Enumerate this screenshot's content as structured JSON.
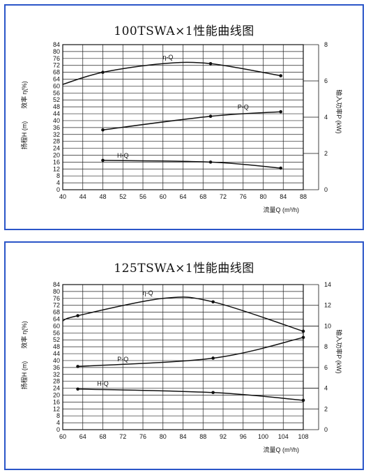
{
  "chart_data": [
    {
      "type": "line",
      "title": "100TSWA×1性能曲线图",
      "xlabel": "流量Q (m³/h)",
      "ylabel_left_1": "扬程H (m)",
      "ylabel_left_2": "效率 η(%)",
      "ylabel_right": "输入功率P (kW)",
      "xlim": [
        40,
        88
      ],
      "ylim": [
        0,
        84
      ],
      "y2lim": [
        0,
        8
      ],
      "x_ticks": [
        "40",
        "44",
        "48",
        "52",
        "56",
        "60",
        "64",
        "68",
        "72",
        "76",
        "80",
        "84",
        "88"
      ],
      "y_ticks": [
        "0",
        "4",
        "8",
        "12",
        "16",
        "20",
        "24",
        "28",
        "32",
        "36",
        "40",
        "44",
        "48",
        "52",
        "56",
        "60",
        "64",
        "68",
        "72",
        "76",
        "80",
        "84"
      ],
      "y2_ticks": [
        "0",
        "2",
        "4",
        "6",
        "8"
      ],
      "grid": true,
      "series": [
        {
          "name": "η-Q",
          "axis": "left",
          "x": [
            40,
            48,
            60,
            69.5,
            83.5
          ],
          "y": [
            61,
            68,
            73,
            73,
            66
          ],
          "markers": [
            48,
            69.5,
            83.5
          ],
          "label_x": 61,
          "label_y": 75.5
        },
        {
          "name": "P-Q",
          "axis": "right",
          "x": [
            48,
            69.5,
            83.5
          ],
          "y": [
            3.3,
            4.05,
            4.3
          ],
          "markers": [
            48,
            69.5,
            83.5
          ],
          "label_x": 76,
          "label_y": 4.45
        },
        {
          "name": "H-Q",
          "axis": "left",
          "x": [
            48,
            69.5,
            83.5
          ],
          "y": [
            17,
            16,
            12.5
          ],
          "markers": [
            48,
            69.5,
            83.5
          ],
          "label_x": 52,
          "label_y": 18.5
        }
      ]
    },
    {
      "type": "line",
      "title": "125TSWA×1性能曲线图",
      "xlabel": "流量Q (m³/h)",
      "ylabel_left_1": "扬程H (m)",
      "ylabel_left_2": "效率 η(%)",
      "ylabel_right": "输入功率P (kW)",
      "xlim": [
        60,
        108
      ],
      "ylim": [
        0,
        84
      ],
      "y2lim": [
        0,
        14
      ],
      "x_ticks": [
        "60",
        "64",
        "68",
        "72",
        "76",
        "80",
        "84",
        "88",
        "92",
        "96",
        "100",
        "104",
        "108"
      ],
      "y_ticks": [
        "0",
        "4",
        "8",
        "12",
        "16",
        "20",
        "24",
        "28",
        "32",
        "36",
        "40",
        "44",
        "48",
        "52",
        "56",
        "60",
        "64",
        "68",
        "72",
        "76",
        "80",
        "84"
      ],
      "y2_ticks": [
        "0",
        "2",
        "4",
        "6",
        "8",
        "10",
        "12",
        "14"
      ],
      "grid": true,
      "series": [
        {
          "name": "η-Q",
          "axis": "left",
          "x": [
            60,
            63,
            80,
            90,
            108
          ],
          "y": [
            63,
            66,
            76,
            74,
            57
          ],
          "markers": [
            63,
            90,
            108
          ],
          "label_x": 77,
          "label_y": 78
        },
        {
          "name": "P-Q",
          "axis": "right",
          "x": [
            63,
            90,
            108
          ],
          "y": [
            6.1,
            6.9,
            8.9
          ],
          "markers": [
            63,
            90,
            108
          ],
          "label_x": 72,
          "label_y": 6.6
        },
        {
          "name": "H-Q",
          "axis": "left",
          "x": [
            63,
            90,
            108
          ],
          "y": [
            23.5,
            21.5,
            17
          ],
          "markers": [
            63,
            90,
            108
          ],
          "label_x": 68,
          "label_y": 25.5
        }
      ]
    }
  ]
}
